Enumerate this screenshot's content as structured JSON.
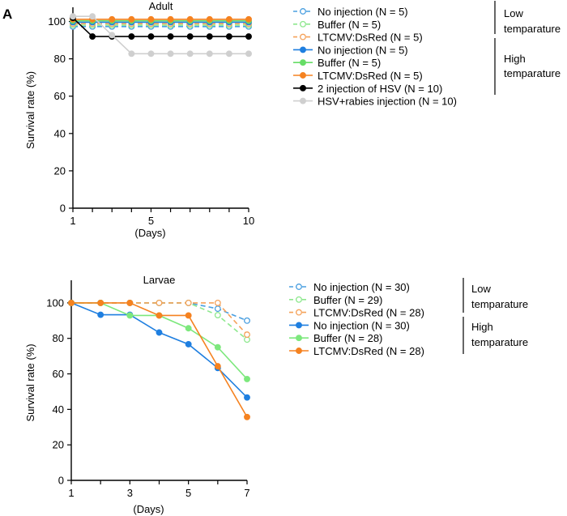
{
  "panel_label": "A",
  "chart_data": [
    {
      "type": "line",
      "title": "Adult",
      "xlabel": "(Days)",
      "ylabel": "Survival rate (%)",
      "xlim": [
        1,
        10
      ],
      "ylim": [
        0,
        105
      ],
      "xticks": [
        1,
        5,
        10
      ],
      "yticks": [
        0,
        20,
        40,
        60,
        80,
        100
      ],
      "x": [
        1,
        2,
        3,
        4,
        5,
        6,
        7,
        8,
        9,
        10
      ],
      "series": [
        {
          "name": "No injection (N = 5)",
          "group": "low",
          "color": "#4a9fe0",
          "style": "dashed",
          "marker": "open",
          "values": [
            100,
            100,
            100,
            100,
            100,
            100,
            100,
            100,
            100,
            100
          ]
        },
        {
          "name": "Buffer (N = 5)",
          "group": "low",
          "color": "#8ee88e",
          "style": "dashed",
          "marker": "open",
          "values": [
            100,
            100,
            100,
            100,
            100,
            100,
            100,
            100,
            100,
            100
          ]
        },
        {
          "name": "LTCMV:DsRed (N = 5)",
          "group": "low",
          "color": "#f5a25a",
          "style": "dashed",
          "marker": "open",
          "values": [
            100,
            100,
            100,
            100,
            100,
            100,
            100,
            100,
            100,
            100
          ]
        },
        {
          "name": "No injection (N = 5)",
          "group": "high",
          "color": "#1f7fe0",
          "style": "solid",
          "marker": "filled",
          "values": [
            100,
            100,
            100,
            100,
            100,
            100,
            100,
            100,
            100,
            100
          ]
        },
        {
          "name": "Buffer (N = 5)",
          "group": "high",
          "color": "#66dd66",
          "style": "solid",
          "marker": "filled",
          "values": [
            100,
            100,
            100,
            100,
            100,
            100,
            100,
            100,
            100,
            100
          ]
        },
        {
          "name": "LTCMV:DsRed (N = 5)",
          "group": "high",
          "color": "#f58220",
          "style": "solid",
          "marker": "filled",
          "values": [
            100,
            100,
            100,
            100,
            100,
            100,
            100,
            100,
            100,
            100
          ]
        },
        {
          "name": "2 injection of HSV (N = 10)",
          "group": "high",
          "color": "#000000",
          "style": "solid",
          "marker": "filled",
          "values": [
            100,
            90,
            90,
            90,
            90,
            90,
            90,
            90,
            90,
            90
          ]
        },
        {
          "name": "HSV+rabies injection (N = 10)",
          "group": "high",
          "color": "#cfcfcf",
          "style": "solid",
          "marker": "filled",
          "values": [
            100,
            100,
            90,
            80,
            80,
            80,
            80,
            80,
            80,
            80
          ]
        }
      ],
      "groups": [
        {
          "id": "low",
          "label_lines": [
            "Low",
            "temparature"
          ]
        },
        {
          "id": "high",
          "label_lines": [
            "High",
            "temparature"
          ]
        }
      ]
    },
    {
      "type": "line",
      "title": "Larvae",
      "xlabel": "(Days)",
      "ylabel": "Survival rate (%)",
      "xlim": [
        1,
        7
      ],
      "ylim": [
        0,
        110
      ],
      "xticks": [
        1,
        3,
        5,
        7
      ],
      "yticks": [
        0,
        20,
        40,
        60,
        80,
        100
      ],
      "x": [
        1,
        2,
        3,
        4,
        5,
        6,
        7
      ],
      "series": [
        {
          "name": "No injection (N = 30)",
          "group": "low",
          "color": "#4a9fe0",
          "style": "dashed",
          "marker": "open",
          "values": [
            100,
            100,
            100,
            100,
            100,
            96.7,
            90
          ]
        },
        {
          "name": "Buffer (N = 29)",
          "group": "low",
          "color": "#8ee88e",
          "style": "dashed",
          "marker": "open",
          "values": [
            100,
            100,
            100,
            100,
            100,
            93.1,
            79.3
          ]
        },
        {
          "name": "LTCMV:DsRed (N = 28)",
          "group": "low",
          "color": "#f5a25a",
          "style": "dashed",
          "marker": "open",
          "values": [
            100,
            100,
            100,
            100,
            100,
            100,
            82.1
          ]
        },
        {
          "name": "No injection (N = 30)",
          "group": "high",
          "color": "#1f7fe0",
          "style": "solid",
          "marker": "filled",
          "values": [
            100,
            93.3,
            93.3,
            83.3,
            76.7,
            63.3,
            46.7
          ]
        },
        {
          "name": "Buffer (N = 28)",
          "group": "high",
          "color": "#7de87d",
          "style": "solid",
          "marker": "filled",
          "values": [
            100,
            100,
            92.9,
            92.9,
            85.7,
            75,
            57.1
          ]
        },
        {
          "name": "LTCMV:DsRed (N = 28)",
          "group": "high",
          "color": "#f58220",
          "style": "solid",
          "marker": "filled",
          "values": [
            100,
            100,
            100,
            92.9,
            92.9,
            64.3,
            35.7
          ]
        }
      ],
      "groups": [
        {
          "id": "low",
          "label_lines": [
            "Low",
            "temparature"
          ]
        },
        {
          "id": "high",
          "label_lines": [
            "High",
            "temparature"
          ]
        }
      ]
    }
  ]
}
